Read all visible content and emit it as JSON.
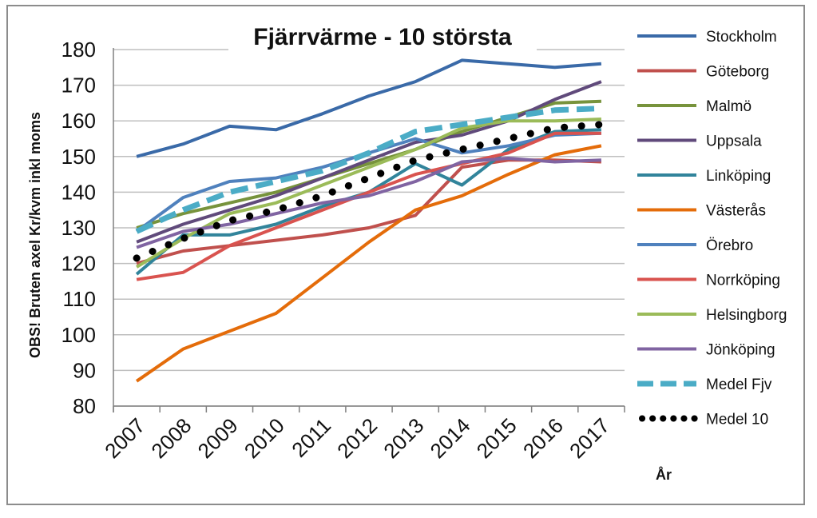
{
  "chart_data": {
    "type": "line",
    "title": "Fjärrvärme - 10 största",
    "ylabel": "OBS! Bruten axel Kr/kvm inkl moms",
    "xlabel": "År",
    "ylim": [
      80,
      180
    ],
    "yticks": [
      80,
      90,
      100,
      110,
      120,
      130,
      140,
      150,
      160,
      170,
      180
    ],
    "categories": [
      "2007",
      "2008",
      "2009",
      "2010",
      "2011",
      "2012",
      "2013",
      "2014",
      "2015",
      "2016",
      "2017"
    ],
    "grid": true,
    "legend_position": "right",
    "series": [
      {
        "name": "Stockholm",
        "color": "#3a6aa8",
        "style": "solid",
        "values": [
          150,
          153.5,
          158.5,
          157.5,
          162,
          167,
          171,
          177,
          176,
          175,
          176
        ]
      },
      {
        "name": "Göteborg",
        "color": "#c0504d",
        "style": "solid",
        "values": [
          120,
          123.5,
          125,
          126.5,
          128,
          130,
          133.5,
          147,
          149,
          149,
          148.5
        ]
      },
      {
        "name": "Malmö",
        "color": "#77933c",
        "style": "solid",
        "values": [
          130,
          134,
          137,
          140,
          144,
          148,
          152,
          157,
          161,
          165,
          165.5
        ]
      },
      {
        "name": "Uppsala",
        "color": "#604a7b",
        "style": "solid",
        "values": [
          126,
          131,
          135,
          139,
          144,
          149,
          154,
          156,
          160,
          166,
          171
        ]
      },
      {
        "name": "Linköping",
        "color": "#31849b",
        "style": "solid",
        "values": [
          117,
          128,
          128,
          131,
          136,
          140,
          148,
          142,
          152,
          157,
          157.5
        ]
      },
      {
        "name": "Västerås",
        "color": "#e46c0a",
        "style": "solid",
        "values": [
          87,
          96,
          101,
          106,
          116,
          126,
          135,
          139,
          145,
          150.5,
          153
        ]
      },
      {
        "name": "Örebro",
        "color": "#4f81bd",
        "style": "solid",
        "values": [
          129,
          138.5,
          143,
          144,
          147,
          151,
          155,
          151,
          153,
          156,
          156.5
        ]
      },
      {
        "name": "Norrköping",
        "color": "#d9534f",
        "style": "solid",
        "values": [
          115.5,
          117.5,
          125,
          130,
          135,
          140,
          145,
          148,
          151,
          156.5,
          156.5
        ]
      },
      {
        "name": "Helsingborg",
        "color": "#9bbb59",
        "style": "solid",
        "values": [
          119,
          127,
          134,
          137,
          142,
          147,
          152,
          158,
          160,
          160,
          160.5
        ]
      },
      {
        "name": "Jönköping",
        "color": "#8064a2",
        "style": "solid",
        "values": [
          124.5,
          129,
          131,
          134,
          137,
          139,
          143,
          148.5,
          149.5,
          148.5,
          149
        ]
      },
      {
        "name": "Medel Fjv",
        "color": "#4bacc6",
        "style": "dashed",
        "values": [
          129,
          135,
          140,
          143,
          146,
          151,
          157,
          159,
          161,
          163,
          163.5
        ]
      },
      {
        "name": "Medel 10",
        "color": "#000000",
        "style": "dotted",
        "values": [
          121.5,
          127,
          132,
          135,
          139,
          144,
          149,
          152,
          155,
          158,
          159
        ]
      }
    ]
  }
}
